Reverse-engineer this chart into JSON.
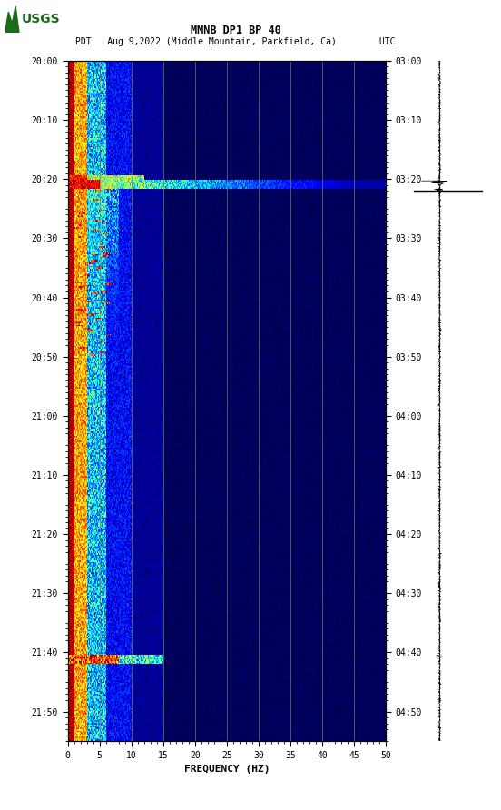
{
  "title_line1": "MMNB DP1 BP 40",
  "title_line2": "PDT   Aug 9,2022 (Middle Mountain, Parkfield, Ca)        UTC",
  "xlabel": "FREQUENCY (HZ)",
  "freq_min": 0,
  "freq_max": 50,
  "ytick_pdt": [
    "20:00",
    "20:10",
    "20:20",
    "20:30",
    "20:40",
    "20:50",
    "21:00",
    "21:10",
    "21:20",
    "21:30",
    "21:40",
    "21:50"
  ],
  "ytick_utc": [
    "03:00",
    "03:10",
    "03:20",
    "03:30",
    "03:40",
    "03:50",
    "04:00",
    "04:10",
    "04:20",
    "04:30",
    "04:40",
    "04:50"
  ],
  "xtick_labels": [
    "0",
    "5",
    "10",
    "15",
    "20",
    "25",
    "30",
    "35",
    "40",
    "45",
    "50"
  ],
  "xtick_positions": [
    0,
    5,
    10,
    15,
    20,
    25,
    30,
    35,
    40,
    45,
    50
  ],
  "vgrid_positions": [
    5,
    10,
    15,
    20,
    25,
    30,
    35,
    40,
    45
  ],
  "vgrid_color": "#808060",
  "background_color": "#ffffff",
  "usgs_green": "#1a6b1a",
  "n_time": 460,
  "n_freq": 500,
  "total_minutes": 115,
  "eq_time_min": 20.3,
  "eq2_time_min": 21.7,
  "eq3_time_min": 100.5,
  "seis_horizontal_line_min": 22.0
}
